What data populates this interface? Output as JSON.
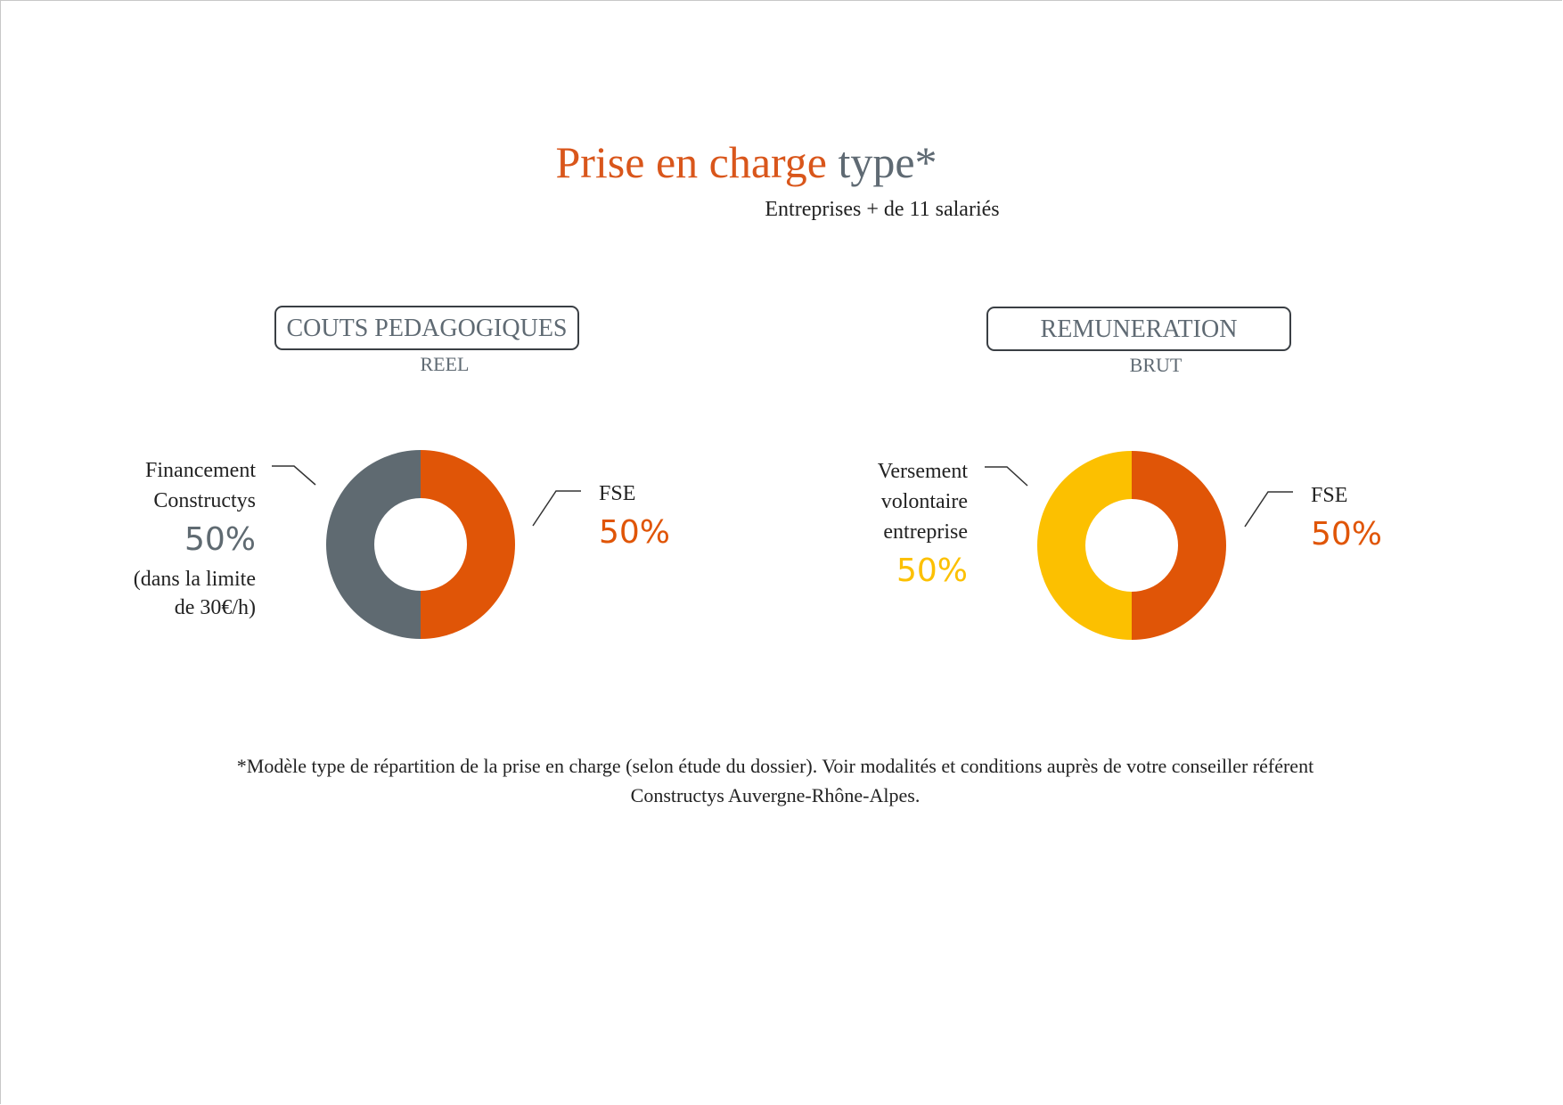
{
  "title": {
    "part1": "Prise en charge",
    "part2": "type*"
  },
  "subtitle": "Entreprises + de 11 salariés",
  "colors": {
    "orange": "#e05507",
    "gray": "#5f6a71",
    "yellow": "#fcc000"
  },
  "chart_data": [
    {
      "type": "pie",
      "donut": true,
      "header": "COUTS PEDAGOGIQUES",
      "subheader": "REEL",
      "slices": [
        {
          "name": "FSE",
          "value": 50,
          "label": "50%",
          "color": "#e05507"
        },
        {
          "name_lines": [
            "Financement",
            "Constructys"
          ],
          "value": 50,
          "label": "50%",
          "note_lines": [
            "(dans la limite",
            "de 30€/h)"
          ],
          "color": "#5f6a71"
        }
      ]
    },
    {
      "type": "pie",
      "donut": true,
      "header": "REMUNERATION",
      "subheader": "BRUT",
      "slices": [
        {
          "name": "FSE",
          "value": 50,
          "label": "50%",
          "color": "#e05507"
        },
        {
          "name_lines": [
            "Versement",
            "volontaire",
            "entreprise"
          ],
          "value": 50,
          "label": "50%",
          "color": "#fcc000"
        }
      ]
    }
  ],
  "footnote": {
    "line1": "*Modèle type de répartition de la prise en charge (selon étude du dossier). Voir modalités et conditions auprès de votre conseiller référent",
    "line2": "Constructys Auvergne-Rhône-Alpes."
  }
}
